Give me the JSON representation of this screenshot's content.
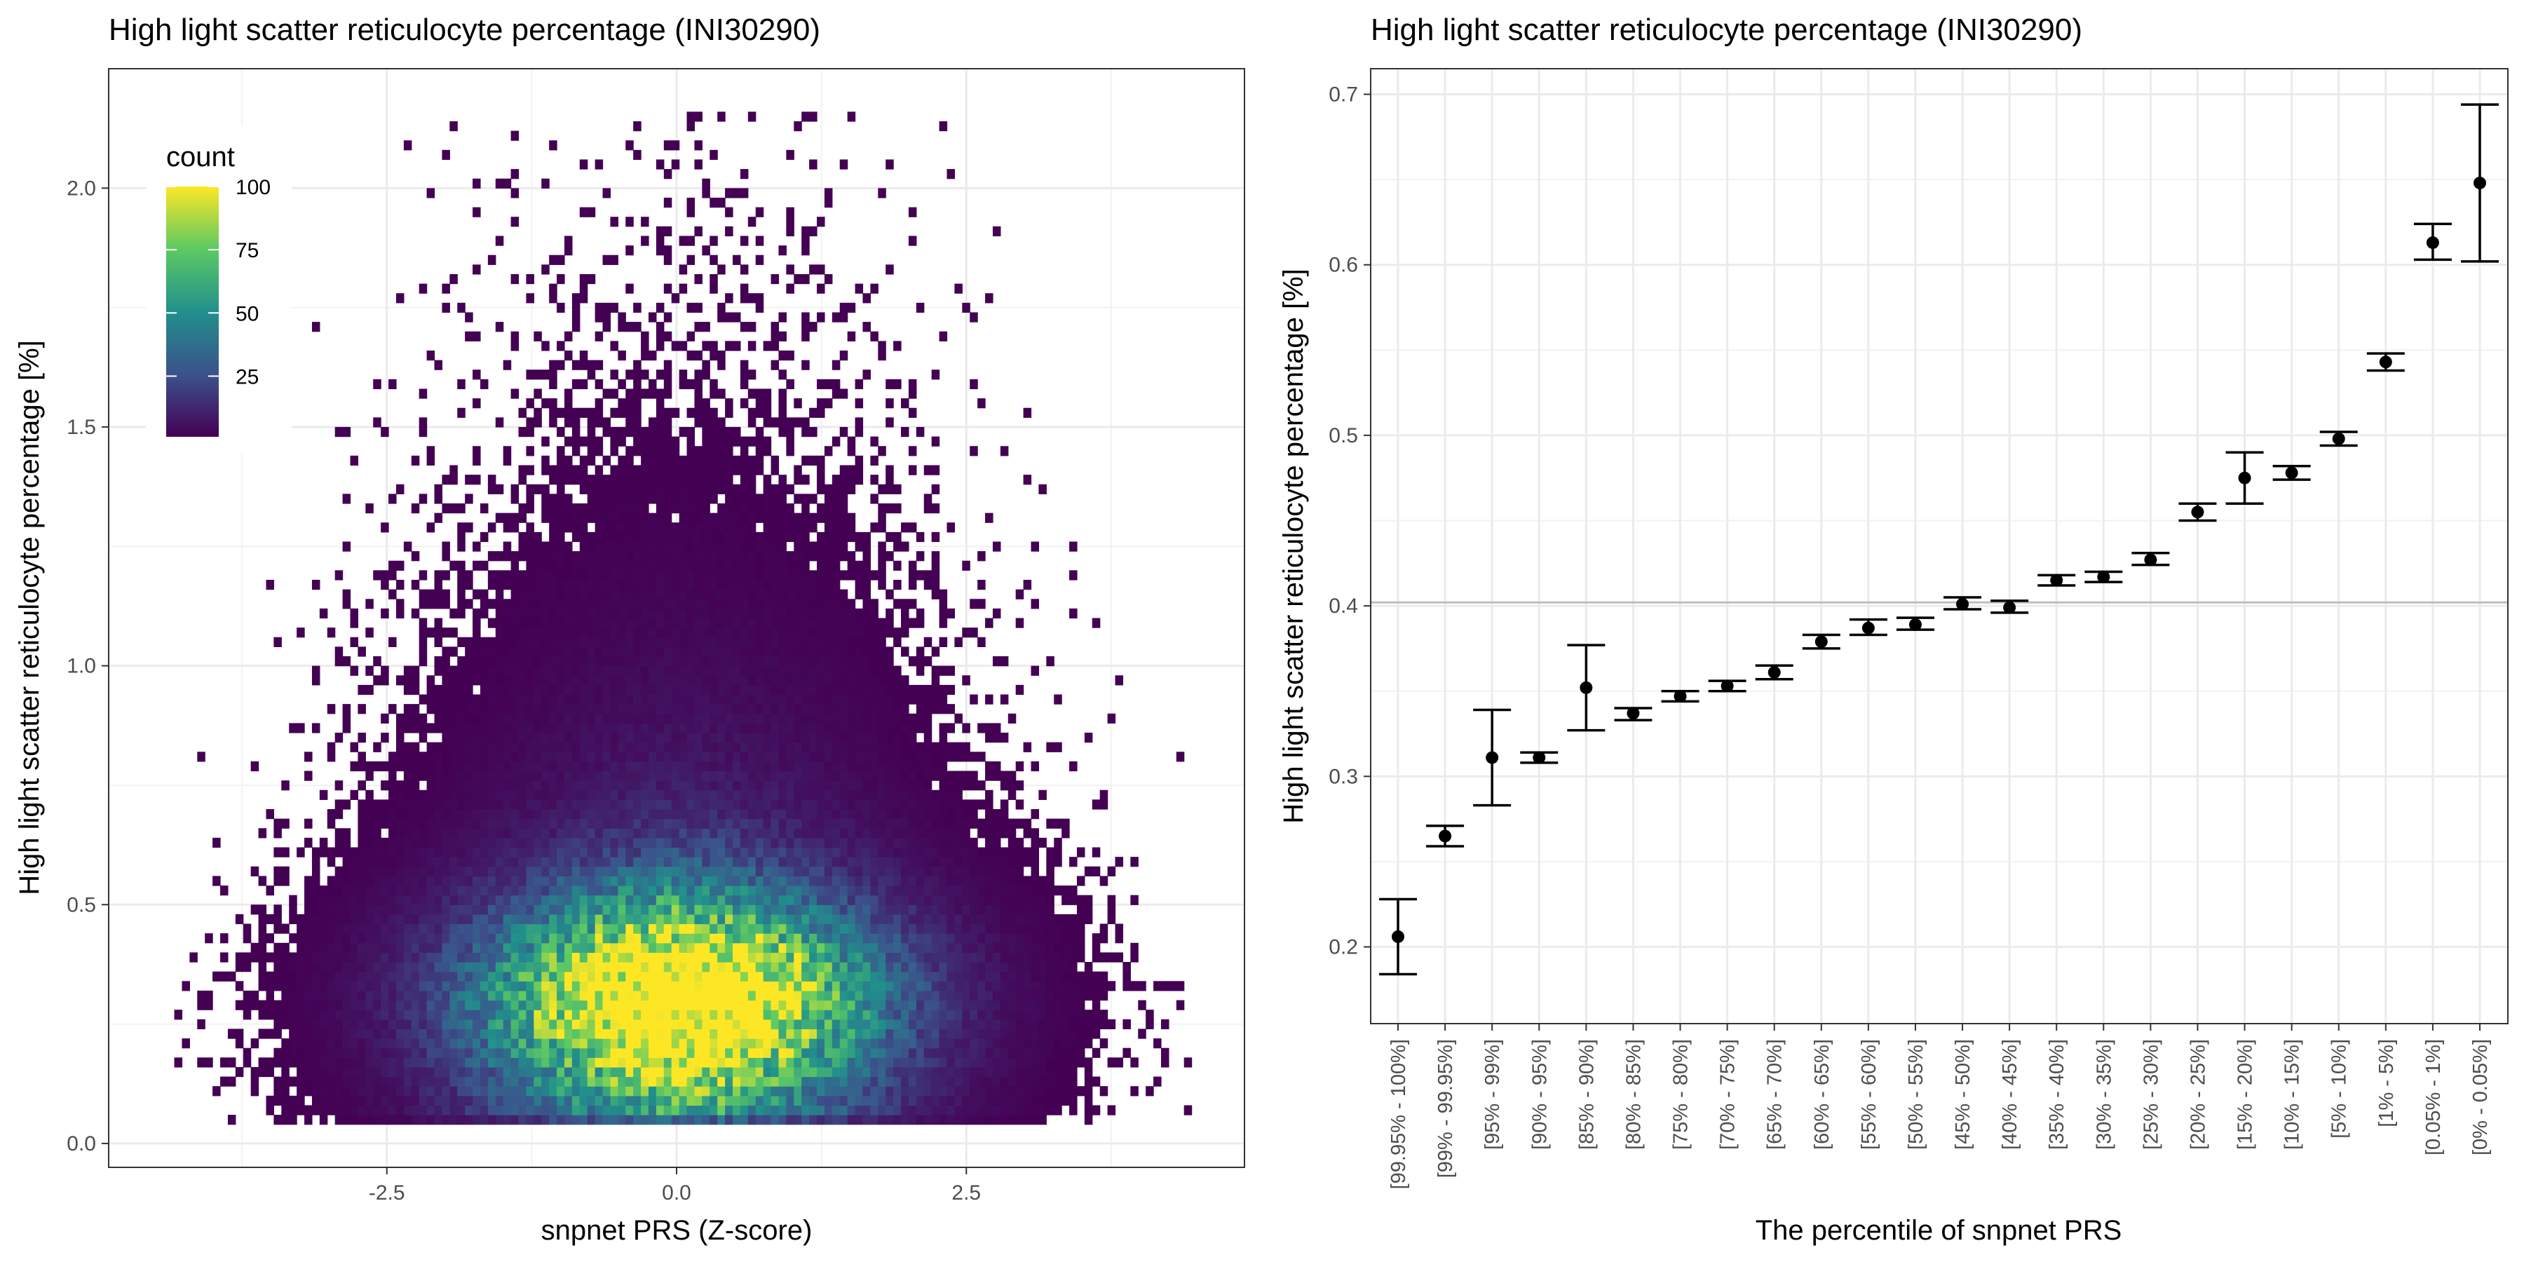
{
  "chart_data": [
    {
      "type": "heatmap",
      "title": "High light scatter reticulocyte percentage (INI30290)",
      "xlabel": "snpnet PRS (Z-score)",
      "ylabel": "High light scatter reticulocyte percentage [%]",
      "xlim": [
        -4.9,
        4.9
      ],
      "ylim": [
        -0.05,
        2.25
      ],
      "x_ticks": [
        -2.5,
        0.0,
        2.5
      ],
      "x_tick_labels": [
        "-2.5",
        "0.0",
        "2.5"
      ],
      "y_ticks": [
        0.0,
        0.5,
        1.0,
        1.5,
        2.0
      ],
      "y_tick_labels": [
        "0.0",
        "0.5",
        "1.0",
        "1.5",
        "2.0"
      ],
      "grid": true,
      "legend": {
        "title": "count",
        "position": "top-left",
        "range": [
          1,
          100
        ],
        "ticks": [
          25,
          50,
          75,
          100
        ],
        "tick_labels": [
          "25",
          "50",
          "75",
          "100"
        ],
        "colors": [
          "#440154",
          "#3b528b",
          "#21908c",
          "#5dc963",
          "#fde725"
        ]
      },
      "density": {
        "center": [
          -0.05,
          0.3
        ],
        "x_sd": 1.12,
        "y_spread": 0.2,
        "max_count": 100
      }
    },
    {
      "type": "scatter",
      "title": "High light scatter reticulocyte percentage (INI30290)",
      "xlabel": "The percentile of snpnet PRS",
      "ylabel": "High light scatter reticulocyte percentage [%]",
      "ylim": [
        0.155,
        0.715
      ],
      "y_ticks": [
        0.2,
        0.3,
        0.4,
        0.5,
        0.6,
        0.7
      ],
      "y_tick_labels": [
        "0.2",
        "0.3",
        "0.4",
        "0.5",
        "0.6",
        "0.7"
      ],
      "reference_line": 0.402,
      "grid": true,
      "categories": [
        "[99.95% - 100%]",
        "[99% - 99.95%]",
        "[95% - 99%]",
        "[90% - 95%]",
        "[85% - 90%]",
        "[80% - 85%]",
        "[75% - 80%]",
        "[70% - 75%]",
        "[65% - 70%]",
        "[60% - 65%]",
        "[55% - 60%]",
        "[50% - 55%]",
        "[45% - 50%]",
        "[40% - 45%]",
        "[35% - 40%]",
        "[30% - 35%]",
        "[25% - 30%]",
        "[20% - 25%]",
        "[15% - 20%]",
        "[10% - 15%]",
        "[5% - 10%]",
        "[1% - 5%]",
        "[0.05% - 1%]",
        "[0% - 0.05%]"
      ],
      "values": [
        0.206,
        0.265,
        0.311,
        0.311,
        0.352,
        0.337,
        0.347,
        0.353,
        0.361,
        0.379,
        0.387,
        0.389,
        0.401,
        0.399,
        0.415,
        0.417,
        0.427,
        0.455,
        0.475,
        0.478,
        0.498,
        0.543,
        0.613,
        0.648
      ],
      "lower": [
        0.184,
        0.259,
        0.283,
        0.308,
        0.327,
        0.333,
        0.344,
        0.35,
        0.357,
        0.375,
        0.383,
        0.386,
        0.398,
        0.396,
        0.412,
        0.414,
        0.424,
        0.45,
        0.46,
        0.474,
        0.494,
        0.538,
        0.603,
        0.602
      ],
      "upper": [
        0.228,
        0.271,
        0.339,
        0.314,
        0.377,
        0.34,
        0.35,
        0.356,
        0.365,
        0.383,
        0.392,
        0.393,
        0.405,
        0.403,
        0.418,
        0.42,
        0.431,
        0.46,
        0.49,
        0.482,
        0.502,
        0.548,
        0.624,
        0.694
      ]
    }
  ]
}
